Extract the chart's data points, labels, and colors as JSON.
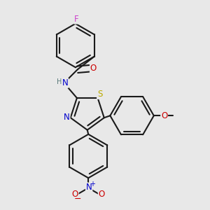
{
  "bg": "#e8e8e8",
  "bc": "#1a1a1a",
  "lw": 1.5,
  "colors": {
    "F": "#cc44cc",
    "O": "#cc0000",
    "N": "#0000cc",
    "S": "#bbaa00",
    "H": "#557777"
  },
  "fs": 8.5
}
